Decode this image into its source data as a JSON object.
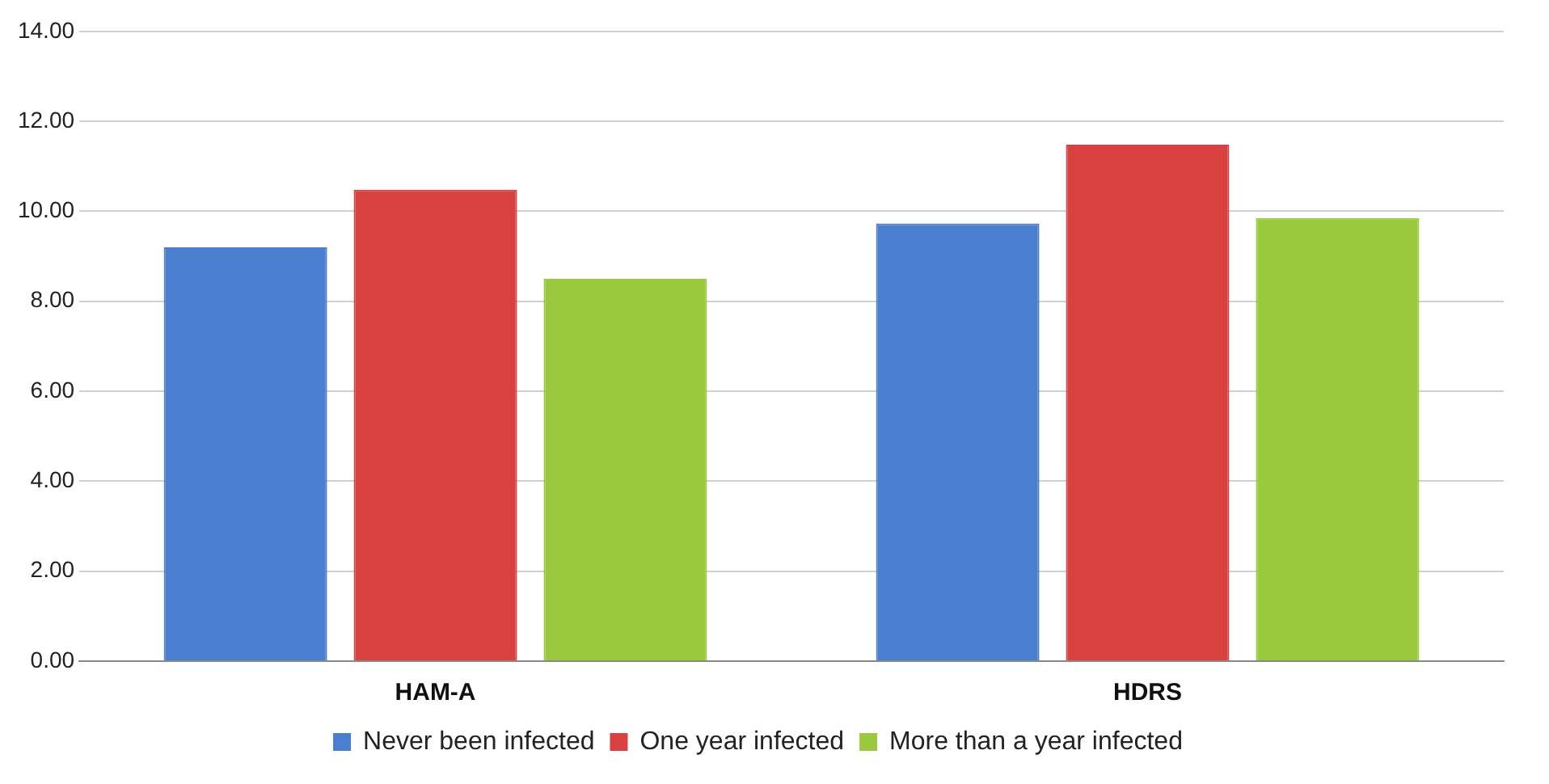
{
  "chart_data": {
    "type": "bar",
    "categories": [
      "HAM-A",
      "HDRS"
    ],
    "series": [
      {
        "name": "Never been infected",
        "color": "#4a7fd0",
        "values": [
          9.2,
          9.73
        ]
      },
      {
        "name": "One year infected",
        "color": "#d94040",
        "values": [
          10.48,
          11.48
        ]
      },
      {
        "name": "More than a year infected",
        "color": "#9bc93e",
        "values": [
          8.5,
          9.85
        ]
      }
    ],
    "ylim": [
      0,
      14
    ],
    "yticks": [
      {
        "value": 0,
        "label": "0.00"
      },
      {
        "value": 2,
        "label": "2.00"
      },
      {
        "value": 4,
        "label": "4.00"
      },
      {
        "value": 6,
        "label": "6.00"
      },
      {
        "value": 8,
        "label": "8.00"
      },
      {
        "value": 10,
        "label": "10.00"
      },
      {
        "value": 12,
        "label": "12.00"
      },
      {
        "value": 14,
        "label": "14.00"
      }
    ],
    "grid": "y",
    "legend": "bottom"
  }
}
